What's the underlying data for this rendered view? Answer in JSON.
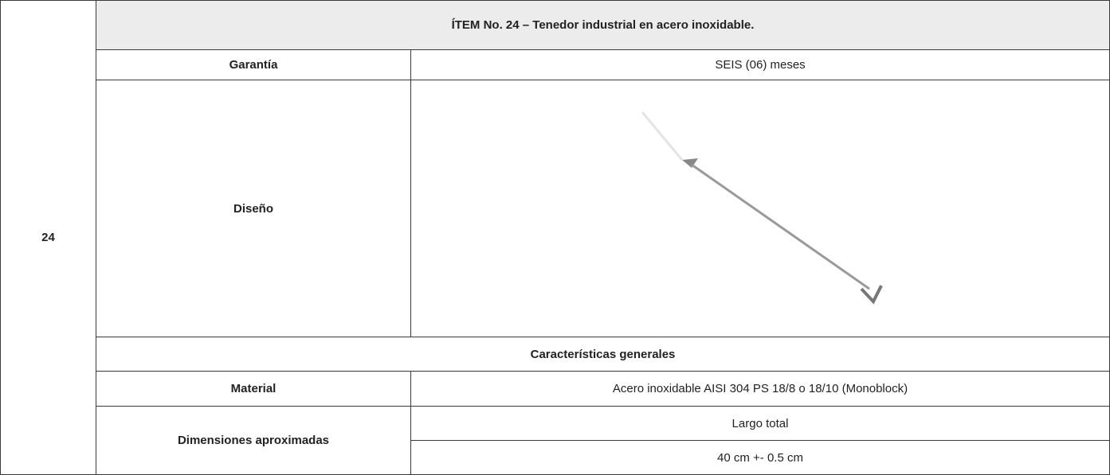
{
  "item_number": "24",
  "title": "ÍTEM No. 24 – Tenedor industrial en acero inoxidable.",
  "table": {
    "rows": [
      [
        "Garantía",
        "SEIS (06) meses"
      ],
      [
        "Diseño"
      ],
      [
        "Características generales"
      ],
      [
        "Material",
        "Acero inoxidable AISI 304 PS 18/8 o 18/10 (Monoblock)"
      ],
      [
        "Dimensiones aproximadas",
        "Largo total",
        "40 cm +- 0.5 cm"
      ]
    ]
  }
}
